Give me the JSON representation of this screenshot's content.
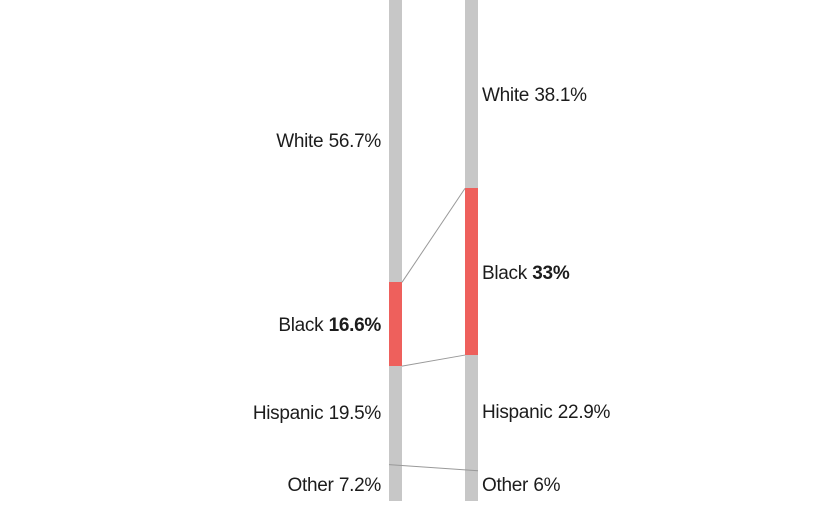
{
  "chart_data": {
    "type": "bar",
    "subtype": "stacked-bar-slope-comparison",
    "categories": [
      "White",
      "Black",
      "Hispanic",
      "Other"
    ],
    "series": [
      {
        "name": "left",
        "values": [
          56.7,
          16.6,
          19.5,
          7.2
        ]
      },
      {
        "name": "right",
        "values": [
          38.1,
          33.0,
          22.9,
          6.0
        ]
      }
    ],
    "unit": "%",
    "highlight_category": "Black",
    "title": "",
    "xlabel": "",
    "ylabel": "",
    "legend": "none",
    "grid": "off",
    "colors": {
      "bar": "#c7c7c7",
      "highlight": "#ee605c",
      "connector": "#999999",
      "text": "#1c1c1c",
      "background": "#ffffff"
    },
    "labels": {
      "left": [
        {
          "name": "White",
          "value": "56.7%"
        },
        {
          "name": "Black",
          "value": "16.6%"
        },
        {
          "name": "Hispanic",
          "value": "19.5%"
        },
        {
          "name": "Other",
          "value": "7.2%"
        }
      ],
      "right": [
        {
          "name": "White",
          "value": "38.1%"
        },
        {
          "name": "Black",
          "value": "33%"
        },
        {
          "name": "Hispanic",
          "value": "22.9%"
        },
        {
          "name": "Other",
          "value": "6%"
        }
      ]
    }
  }
}
